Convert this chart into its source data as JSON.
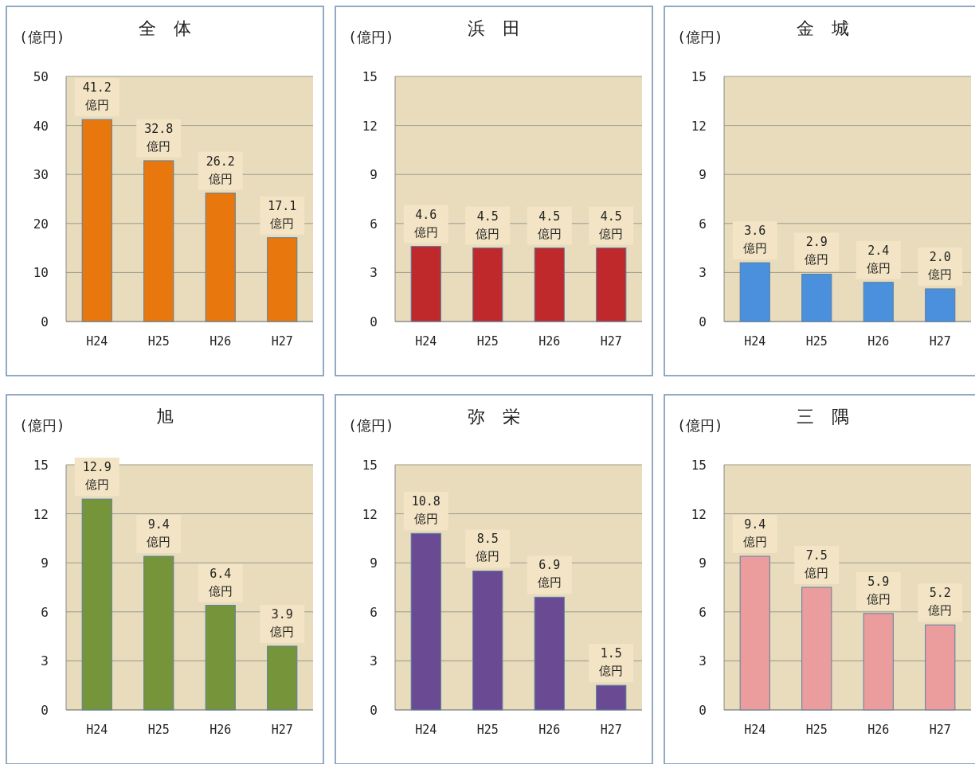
{
  "chart_data": [
    {
      "type": "bar",
      "title": "全　体",
      "ylabel": "(億円)",
      "categories": [
        "H24",
        "H25",
        "H26",
        "H27"
      ],
      "values": [
        41.2,
        32.8,
        26.2,
        17.1
      ],
      "color": "#e8780e",
      "ylim": [
        0,
        50
      ],
      "yticks": [
        0,
        10,
        20,
        30,
        40,
        50
      ],
      "grid": "y",
      "value_labels": [
        "41.2 億円",
        "32.8 億円",
        "26.2 億円",
        "17.1 億円"
      ]
    },
    {
      "type": "bar",
      "title": "浜　田",
      "ylabel": "(億円)",
      "categories": [
        "H24",
        "H25",
        "H26",
        "H27"
      ],
      "values": [
        4.6,
        4.5,
        4.5,
        4.5
      ],
      "color": "#c0292c",
      "ylim": [
        0,
        15
      ],
      "yticks": [
        0,
        3,
        6,
        9,
        12,
        15
      ],
      "grid": "y",
      "value_labels": [
        "4.6 億円",
        "4.5 億円",
        "4.5 億円",
        "4.5 億円"
      ]
    },
    {
      "type": "bar",
      "title": "金　城",
      "ylabel": "(億円)",
      "categories": [
        "H24",
        "H25",
        "H26",
        "H27"
      ],
      "values": [
        3.6,
        2.9,
        2.4,
        2.0
      ],
      "color": "#4a90dc",
      "ylim": [
        0,
        15
      ],
      "yticks": [
        0,
        3,
        6,
        9,
        12,
        15
      ],
      "grid": "y",
      "value_labels": [
        "3.6 億円",
        "2.9 億円",
        "2.4 億円",
        "2.0 億円"
      ]
    },
    {
      "type": "bar",
      "title": "旭",
      "ylabel": "(億円)",
      "categories": [
        "H24",
        "H25",
        "H26",
        "H27"
      ],
      "values": [
        12.9,
        9.4,
        6.4,
        3.9
      ],
      "color": "#76953a",
      "ylim": [
        0,
        15
      ],
      "yticks": [
        0,
        3,
        6,
        9,
        12,
        15
      ],
      "grid": "y",
      "value_labels": [
        "12.9 億円",
        "9.4 億円",
        "6.4 億円",
        "3.9 億円"
      ]
    },
    {
      "type": "bar",
      "title": "弥　栄",
      "ylabel": "(億円)",
      "categories": [
        "H24",
        "H25",
        "H26",
        "H27"
      ],
      "values": [
        10.8,
        8.5,
        6.9,
        1.5
      ],
      "color": "#6a4a92",
      "ylim": [
        0,
        15
      ],
      "yticks": [
        0,
        3,
        6,
        9,
        12,
        15
      ],
      "grid": "y",
      "value_labels": [
        "10.8 億円",
        "8.5 億円",
        "6.9 億円",
        "1.5 億円"
      ]
    },
    {
      "type": "bar",
      "title": "三　隅",
      "ylabel": "(億円)",
      "categories": [
        "H24",
        "H25",
        "H26",
        "H27"
      ],
      "values": [
        9.4,
        7.5,
        5.9,
        5.2
      ],
      "color": "#eb9c9c",
      "ylim": [
        0,
        15
      ],
      "yticks": [
        0,
        3,
        6,
        9,
        12,
        15
      ],
      "grid": "y",
      "value_labels": [
        "9.4 億円",
        "7.5 億円",
        "5.9 億円",
        "5.2 億円"
      ]
    }
  ]
}
